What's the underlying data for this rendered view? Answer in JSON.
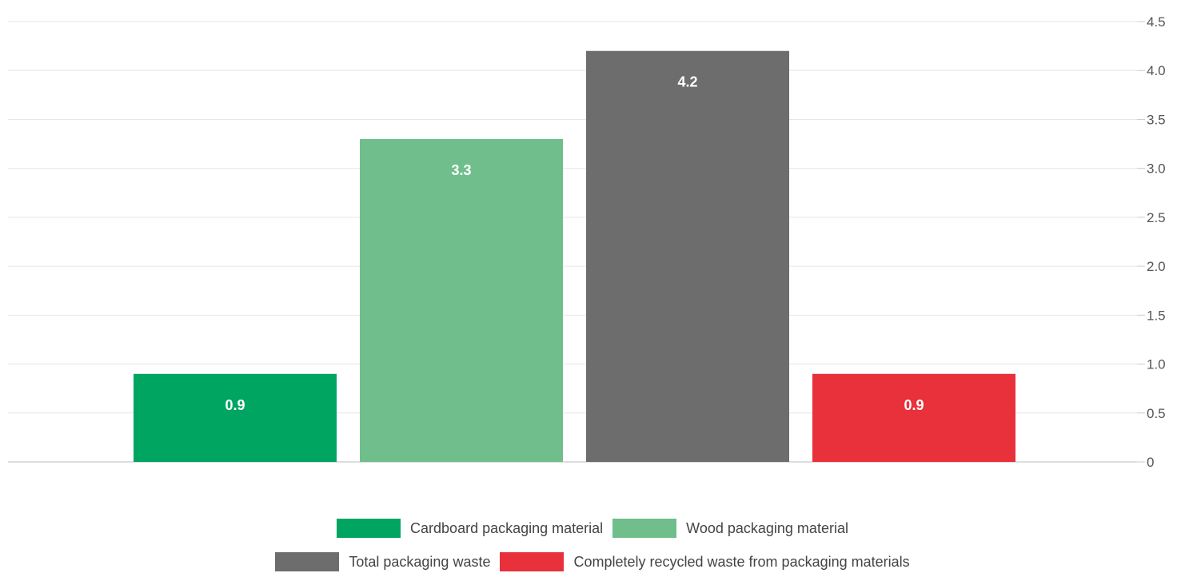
{
  "chart_data": {
    "type": "bar",
    "categories": [
      "Cardboard packaging material",
      "Wood packaging material",
      "Total packaging waste",
      "Completely recycled waste from packaging materials"
    ],
    "values": [
      0.9,
      3.3,
      4.2,
      0.9
    ],
    "value_labels": [
      "0.9",
      "3.3",
      "4.2",
      "0.9"
    ],
    "colors": [
      "#00a562",
      "#6fbe8c",
      "#6d6d6d",
      "#e8313b"
    ],
    "ylim": [
      0,
      4.5
    ],
    "y_ticks": [
      "0",
      "0.5",
      "1.0",
      "1.5",
      "2.0",
      "2.5",
      "3.0",
      "3.5",
      "4.0",
      "4.5"
    ],
    "y_axis_side": "right",
    "grid": true,
    "legend_position": "bottom"
  }
}
